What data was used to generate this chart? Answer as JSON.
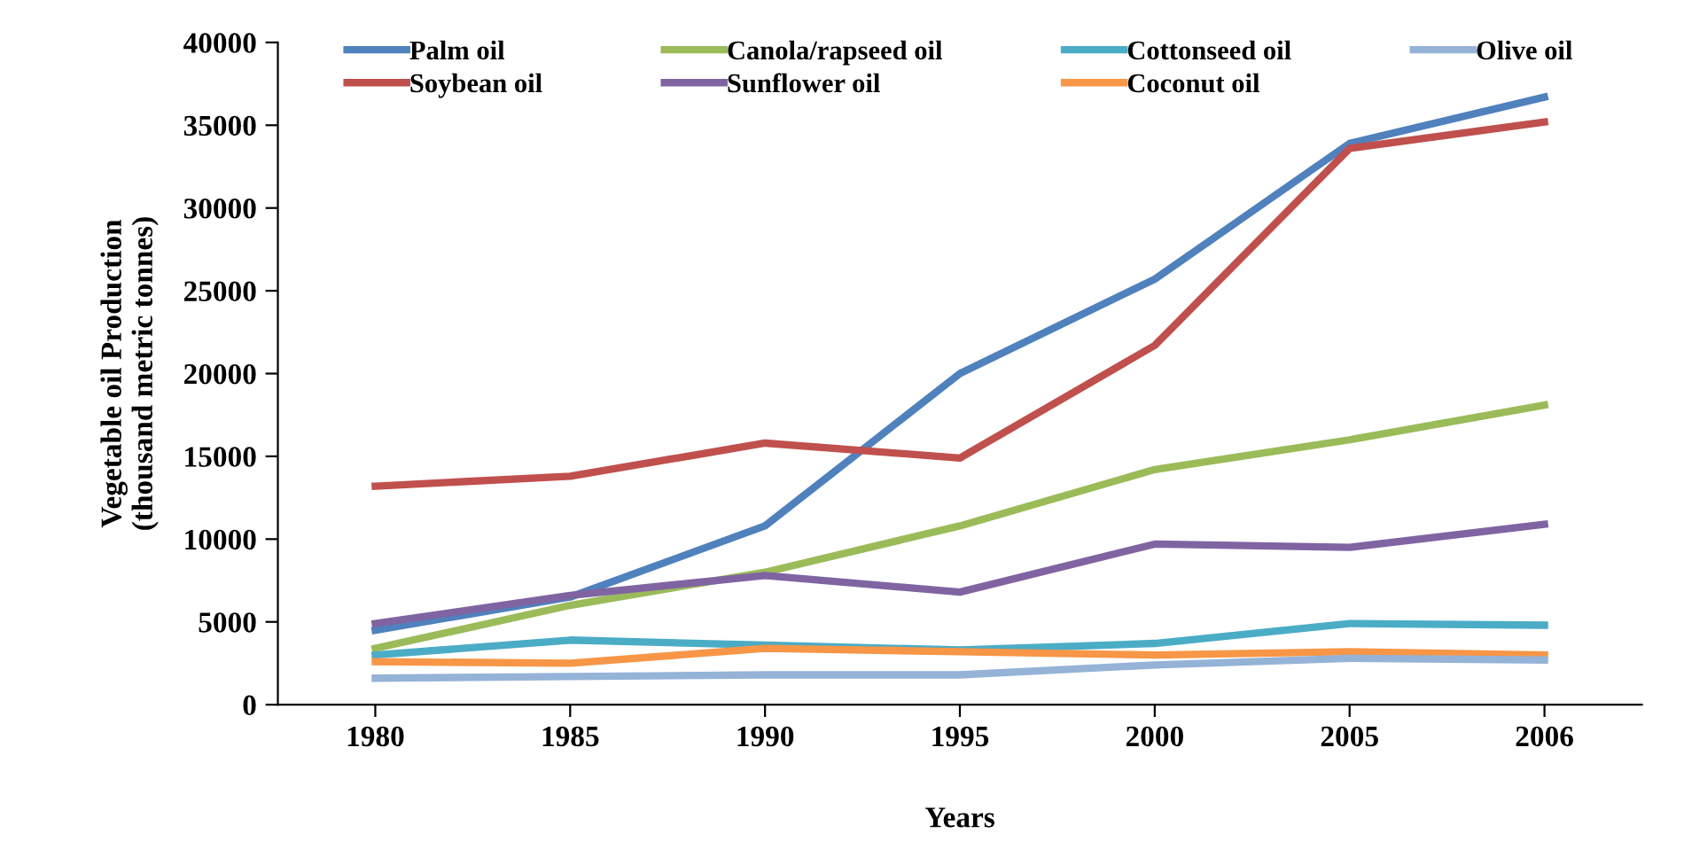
{
  "chart_data": {
    "type": "line",
    "xlabel": "Years",
    "ylabel": "Vegetable oil Production\n(thousand metric tonnes)",
    "categories": [
      "1980",
      "1985",
      "1990",
      "1995",
      "2000",
      "2005",
      "2006"
    ],
    "series": [
      {
        "name": "Palm oil",
        "color": "#4f81bd",
        "values": [
          4500,
          6500,
          10800,
          20000,
          25700,
          33900,
          36700
        ]
      },
      {
        "name": "Soybean oil",
        "color": "#c0504d",
        "values": [
          13200,
          13800,
          15800,
          14900,
          21700,
          33600,
          35200
        ]
      },
      {
        "name": "Canola/rapseed oil",
        "color": "#9bbb59",
        "values": [
          3400,
          6000,
          8000,
          10800,
          14200,
          16000,
          18100
        ]
      },
      {
        "name": "Sunflower oil",
        "color": "#8064a2",
        "values": [
          4900,
          6600,
          7800,
          6800,
          9700,
          9500,
          10900
        ]
      },
      {
        "name": "Cottonseed oil",
        "color": "#4bacc6",
        "values": [
          3000,
          3900,
          3600,
          3300,
          3700,
          4900,
          4800
        ]
      },
      {
        "name": "Coconut oil",
        "color": "#f79646",
        "values": [
          2600,
          2500,
          3400,
          3200,
          3000,
          3200,
          3000
        ]
      },
      {
        "name": "Olive oil",
        "color": "#95b3d7",
        "values": [
          1600,
          1700,
          1800,
          1800,
          2400,
          2800,
          2700
        ]
      }
    ],
    "ylim": [
      0,
      40000
    ],
    "yticks": [
      0,
      5000,
      10000,
      15000,
      20000,
      25000,
      30000,
      35000,
      40000
    ],
    "grid": false,
    "legend": "top",
    "marker": "none",
    "line_style": "solid"
  }
}
